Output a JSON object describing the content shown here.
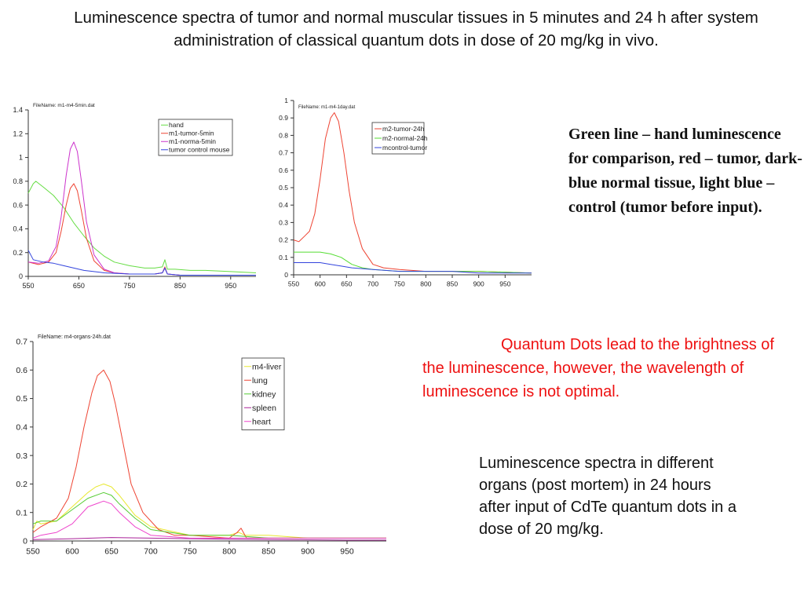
{
  "slide": {
    "title": "Luminescence spectra of tumor and normal muscular tissues in 5 minutes and 24 h  after system administration of classical quantum dots in dose of 20 mg/kg in vivo.",
    "legend_note": "Green line – hand luminescence for comparison, red – tumor, dark-blue normal tissue, light blue – control (tumor before input).",
    "red_note": "Quantum Dots lead to the brightness of the luminescence, however, the wavelength of luminescence is not optimal.",
    "caption": "Luminescence spectra in different organs (post mortem)  in 24 hours after input of CdTe quantum dots in a dose of 20 mg/kg."
  },
  "chart_data": [
    {
      "type": "line",
      "file_label": "FileName: m1-m4-5min.dat",
      "xlim": [
        550,
        1000
      ],
      "ylim": [
        0,
        1.4
      ],
      "xticks": [
        550,
        650,
        750,
        850,
        950
      ],
      "yticks": [
        0,
        0.2,
        0.4,
        0.6,
        0.8,
        1,
        1.2,
        1.4
      ],
      "xtick_labels": [
        "550",
        "650",
        "750",
        "850",
        "950"
      ],
      "ytick_labels": [
        "0",
        "0.2",
        "0.4",
        "0.6",
        "0.8",
        "1",
        "1.2",
        "1.4"
      ],
      "legend_position": "top-right",
      "series": [
        {
          "name": "hand",
          "color": "#66dd44",
          "x": [
            550,
            560,
            565,
            580,
            600,
            620,
            640,
            660,
            680,
            700,
            720,
            750,
            780,
            800,
            815,
            820,
            825,
            840,
            870,
            900,
            950,
            1000
          ],
          "y": [
            0.7,
            0.78,
            0.8,
            0.75,
            0.68,
            0.58,
            0.45,
            0.34,
            0.24,
            0.17,
            0.12,
            0.09,
            0.07,
            0.07,
            0.08,
            0.14,
            0.06,
            0.06,
            0.05,
            0.05,
            0.04,
            0.03
          ]
        },
        {
          "name": "m1-tumor-5min",
          "color": "#ee4433",
          "x": [
            550,
            570,
            590,
            605,
            615,
            625,
            633,
            640,
            647,
            655,
            665,
            680,
            700,
            720,
            750,
            800,
            815,
            820,
            825,
            850,
            900,
            1000
          ],
          "y": [
            0.12,
            0.1,
            0.12,
            0.2,
            0.38,
            0.6,
            0.74,
            0.78,
            0.72,
            0.55,
            0.32,
            0.13,
            0.05,
            0.03,
            0.02,
            0.02,
            0.03,
            0.08,
            0.02,
            0.01,
            0.01,
            0.01
          ]
        },
        {
          "name": "m1-norma-5min",
          "color": "#cc33cc",
          "x": [
            550,
            570,
            590,
            605,
            615,
            625,
            633,
            640,
            647,
            655,
            665,
            680,
            700,
            720,
            750,
            800,
            815,
            820,
            825,
            850,
            900,
            1000
          ],
          "y": [
            0.12,
            0.11,
            0.13,
            0.25,
            0.5,
            0.85,
            1.07,
            1.13,
            1.05,
            0.8,
            0.46,
            0.18,
            0.06,
            0.03,
            0.02,
            0.02,
            0.03,
            0.07,
            0.02,
            0.01,
            0.01,
            0.01
          ]
        },
        {
          "name": "tumor control mouse",
          "color": "#3344dd",
          "x": [
            550,
            560,
            580,
            600,
            620,
            640,
            660,
            680,
            700,
            750,
            800,
            815,
            820,
            825,
            850,
            900,
            1000
          ],
          "y": [
            0.22,
            0.14,
            0.12,
            0.11,
            0.09,
            0.07,
            0.05,
            0.04,
            0.03,
            0.02,
            0.02,
            0.03,
            0.07,
            0.02,
            0.01,
            0.01,
            0.01
          ]
        }
      ]
    },
    {
      "type": "line",
      "file_label": "FileName: m1-m4-1day.dat",
      "xlim": [
        550,
        1000
      ],
      "ylim": [
        0,
        1
      ],
      "xticks": [
        550,
        600,
        650,
        700,
        750,
        800,
        850,
        900,
        950
      ],
      "yticks": [
        0,
        0.1,
        0.2,
        0.3,
        0.4,
        0.5,
        0.6,
        0.7,
        0.8,
        0.9,
        1
      ],
      "xtick_labels": [
        "550",
        "600",
        "650",
        "700",
        "750",
        "800",
        "850",
        "900",
        "950"
      ],
      "ytick_labels": [
        "0",
        "0.1",
        "0.2",
        "0.3",
        "0.4",
        "0.5",
        "0.6",
        "0.7",
        "0.8",
        "0.9",
        "1"
      ],
      "legend_position": "top-right",
      "series": [
        {
          "name": "m2-tumor-24h",
          "color": "#ee4433",
          "x": [
            550,
            560,
            570,
            580,
            590,
            600,
            610,
            620,
            627,
            635,
            645,
            655,
            665,
            680,
            700,
            720,
            750,
            800,
            850,
            900,
            1000
          ],
          "y": [
            0.2,
            0.19,
            0.22,
            0.25,
            0.35,
            0.55,
            0.78,
            0.9,
            0.93,
            0.88,
            0.7,
            0.48,
            0.3,
            0.15,
            0.06,
            0.04,
            0.03,
            0.02,
            0.02,
            0.02,
            0.01
          ]
        },
        {
          "name": "m2-normal-24h",
          "color": "#55dd33",
          "x": [
            550,
            580,
            600,
            620,
            640,
            660,
            680,
            700,
            750,
            800,
            850,
            900,
            1000
          ],
          "y": [
            0.13,
            0.13,
            0.13,
            0.12,
            0.1,
            0.06,
            0.04,
            0.03,
            0.02,
            0.02,
            0.02,
            0.02,
            0.01
          ]
        },
        {
          "name": "mcontrol-tumor",
          "color": "#3344dd",
          "x": [
            550,
            580,
            600,
            620,
            640,
            660,
            700,
            750,
            800,
            850,
            900,
            1000
          ],
          "y": [
            0.07,
            0.07,
            0.07,
            0.06,
            0.05,
            0.04,
            0.03,
            0.02,
            0.02,
            0.02,
            0.01,
            0.01
          ]
        }
      ]
    },
    {
      "type": "line",
      "file_label": "FileName: m4-organs-24h.dat",
      "xlim": [
        550,
        1000
      ],
      "ylim": [
        0,
        0.7
      ],
      "xticks": [
        550,
        600,
        650,
        700,
        750,
        800,
        850,
        900,
        950
      ],
      "yticks": [
        0,
        0.1,
        0.2,
        0.3,
        0.4,
        0.5,
        0.6,
        0.7
      ],
      "xtick_labels": [
        "550",
        "600",
        "650",
        "700",
        "750",
        "800",
        "850",
        "900",
        "950"
      ],
      "ytick_labels": [
        "0",
        "0.1",
        "0.2",
        "0.3",
        "0.4",
        "0.5",
        "0.6",
        "0.7"
      ],
      "legend_position": "top-right",
      "series": [
        {
          "name": "m4-liver",
          "color": "#e8e830",
          "x": [
            550,
            555,
            560,
            580,
            600,
            620,
            630,
            640,
            650,
            660,
            680,
            700,
            750,
            800,
            812,
            820,
            850,
            900,
            950,
            1000
          ],
          "y": [
            0.04,
            0.07,
            0.06,
            0.07,
            0.12,
            0.17,
            0.19,
            0.2,
            0.19,
            0.16,
            0.09,
            0.05,
            0.02,
            0.02,
            0.03,
            0.02,
            0.02,
            0.01,
            0.01,
            0.01
          ]
        },
        {
          "name": "lung",
          "color": "#ee4433",
          "x": [
            550,
            560,
            580,
            595,
            605,
            615,
            625,
            632,
            640,
            648,
            655,
            665,
            675,
            690,
            710,
            730,
            750,
            800,
            810,
            815,
            822,
            850,
            900,
            950,
            1000
          ],
          "y": [
            0.03,
            0.05,
            0.08,
            0.15,
            0.26,
            0.4,
            0.52,
            0.58,
            0.6,
            0.56,
            0.48,
            0.34,
            0.2,
            0.1,
            0.04,
            0.02,
            0.02,
            0.01,
            0.03,
            0.045,
            0.01,
            0.01,
            0.01,
            0.01,
            0.01
          ]
        },
        {
          "name": "kidney",
          "color": "#55cc33",
          "x": [
            550,
            560,
            580,
            600,
            620,
            640,
            650,
            660,
            680,
            700,
            750,
            800,
            850,
            900,
            1000
          ],
          "y": [
            0.06,
            0.07,
            0.07,
            0.11,
            0.15,
            0.17,
            0.16,
            0.13,
            0.08,
            0.04,
            0.02,
            0.02,
            0.01,
            0.01,
            0.01
          ]
        },
        {
          "name": "spleen",
          "color": "#aa2299",
          "x": [
            550,
            600,
            650,
            700,
            750,
            800,
            850,
            900,
            950,
            1000
          ],
          "y": [
            0.005,
            0.008,
            0.012,
            0.01,
            0.008,
            0.006,
            0.005,
            0.004,
            0.003,
            0.003
          ]
        },
        {
          "name": "heart",
          "color": "#ee44cc",
          "x": [
            550,
            560,
            580,
            600,
            620,
            640,
            650,
            660,
            680,
            700,
            750,
            800,
            850,
            900,
            1000
          ],
          "y": [
            0.01,
            0.02,
            0.03,
            0.06,
            0.12,
            0.14,
            0.13,
            0.1,
            0.05,
            0.02,
            0.01,
            0.01,
            0.01,
            0.01,
            0.01
          ]
        }
      ]
    }
  ]
}
